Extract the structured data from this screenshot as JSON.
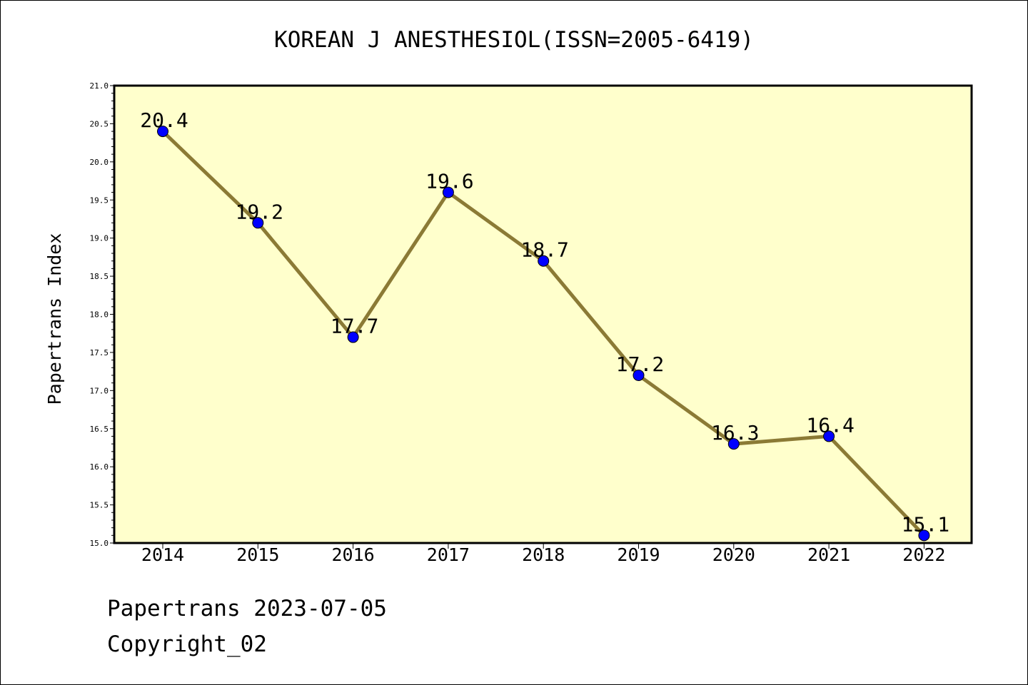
{
  "chart_data": {
    "type": "line",
    "title": "KOREAN J ANESTHESIOL(ISSN=2005-6419)",
    "xlabel": "",
    "ylabel": "Papertrans Index",
    "categories": [
      "2014",
      "2015",
      "2016",
      "2017",
      "2018",
      "2019",
      "2020",
      "2021",
      "2022"
    ],
    "series": [
      {
        "name": "Papertrans Index",
        "values": [
          20.4,
          19.2,
          17.7,
          19.6,
          18.7,
          17.2,
          16.3,
          16.4,
          15.1
        ]
      }
    ],
    "value_labels": [
      "20.4",
      "19.2",
      "17.7",
      "19.6",
      "18.7",
      "17.2",
      "16.3",
      "16.4",
      "15.1"
    ],
    "ylim": [
      15.0,
      21.0
    ],
    "yticks": [
      "15.0",
      "15.5",
      "16.0",
      "16.5",
      "17.0",
      "17.5",
      "18.0",
      "18.5",
      "19.0",
      "19.5",
      "20.0",
      "20.5",
      "21.0"
    ],
    "grid": false,
    "legend": "none"
  },
  "colors": {
    "plot_background": "#ffffcc",
    "line": "#8b7a35",
    "marker": "#0000ff",
    "axes": "#000000"
  },
  "footer": {
    "date_line": "Papertrans 2023-07-05",
    "copyright": "Copyright_02"
  }
}
